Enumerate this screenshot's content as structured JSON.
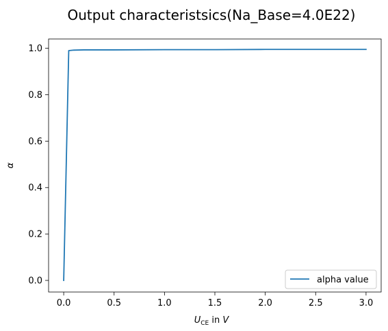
{
  "colors": {
    "series": "#1f77b4",
    "axes": "#000000",
    "legend_border": "#cccccc",
    "background": "#ffffff"
  },
  "chart_data": {
    "type": "line",
    "title": "Output characteristsics(Na_Base=4.0E22)",
    "xlabel": {
      "main": "U",
      "subscript": "CE",
      "mid": " in ",
      "unit": "V"
    },
    "ylabel": "α",
    "xlim": [
      -0.15,
      3.15
    ],
    "ylim": [
      -0.05,
      1.04
    ],
    "xticks": [
      0.0,
      0.5,
      1.0,
      1.5,
      2.0,
      2.5,
      3.0
    ],
    "xtick_labels": [
      "0.0",
      "0.5",
      "1.0",
      "1.5",
      "2.0",
      "2.5",
      "3.0"
    ],
    "yticks": [
      0.0,
      0.2,
      0.4,
      0.6,
      0.8,
      1.0
    ],
    "ytick_labels": [
      "0.0",
      "0.2",
      "0.4",
      "0.6",
      "0.8",
      "1.0"
    ],
    "grid": false,
    "legend_position": "lower-right",
    "series": [
      {
        "name": "alpha value",
        "x": [
          0.0,
          0.05,
          0.1,
          0.2,
          0.5,
          1.0,
          1.5,
          2.0,
          2.5,
          3.0
        ],
        "y": [
          0.0,
          0.99,
          0.992,
          0.993,
          0.993,
          0.994,
          0.994,
          0.995,
          0.995,
          0.995
        ]
      }
    ]
  }
}
